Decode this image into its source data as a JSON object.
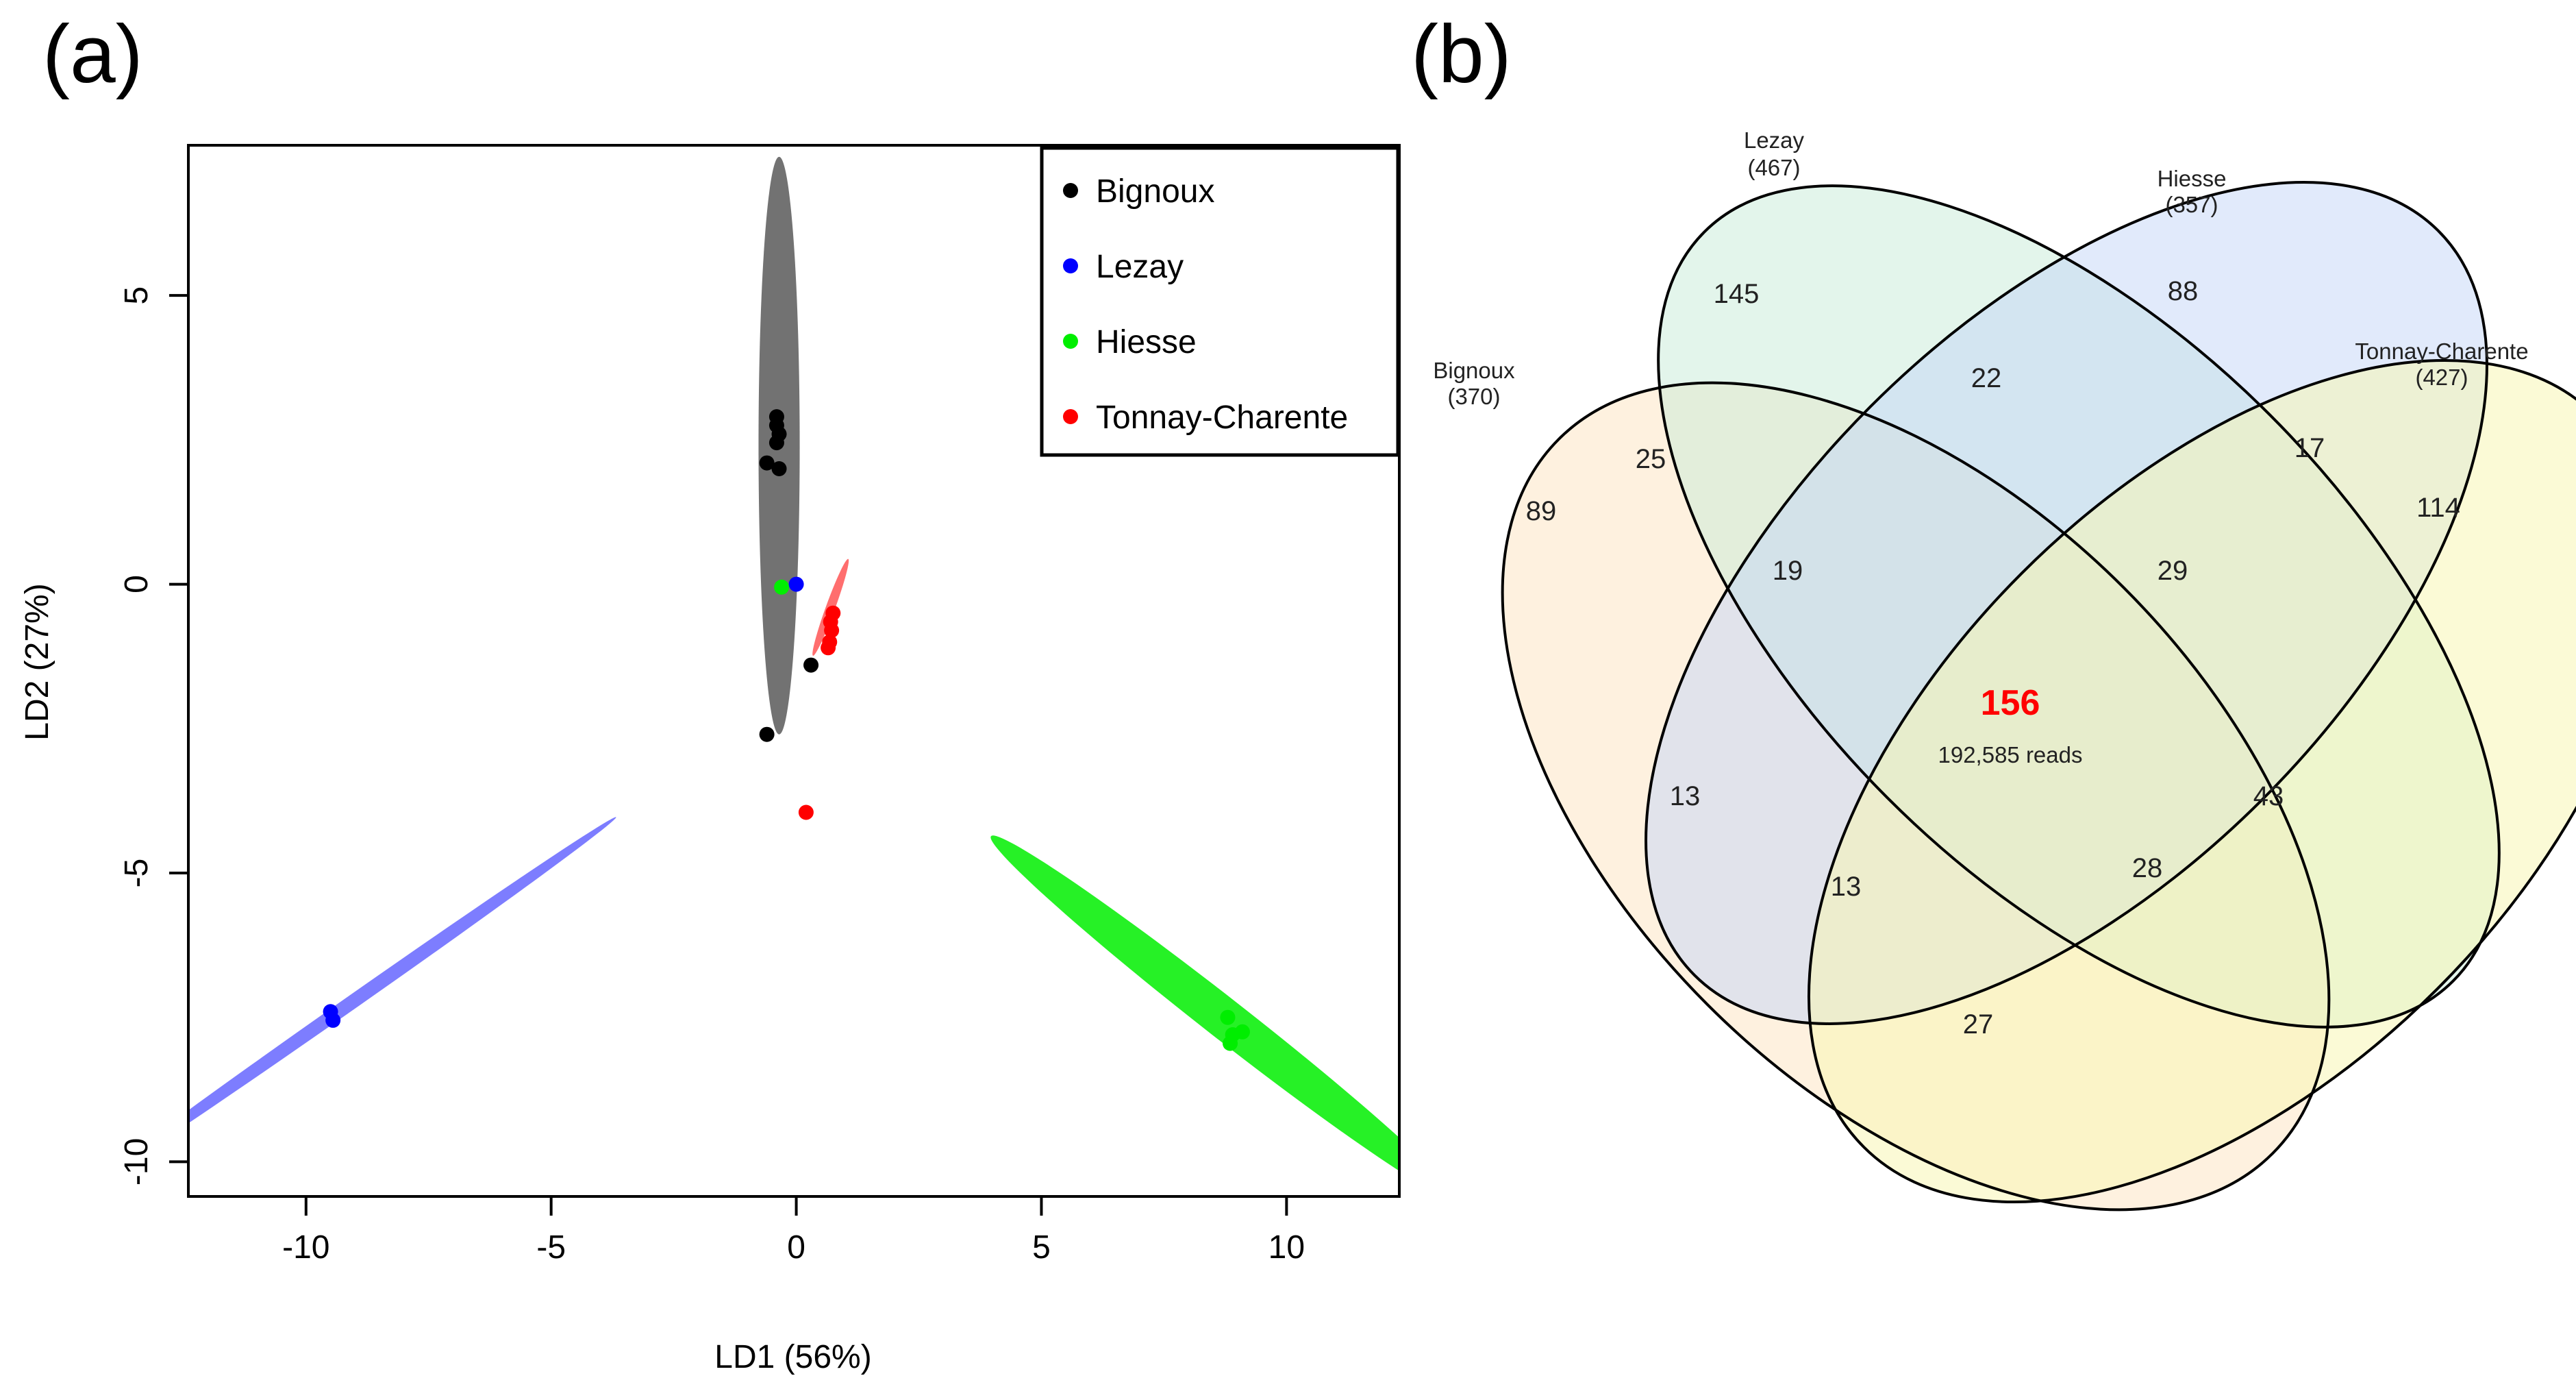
{
  "panels": {
    "a_label": "(a)",
    "b_label": "(b)"
  },
  "chart_data": [
    {
      "type": "scatter",
      "panel": "(a)",
      "xlabel": "LD1 (56%)",
      "ylabel": "LD2 (27%)",
      "xlim": [
        -12.4,
        12.3
      ],
      "ylim": [
        -10.6,
        7.6
      ],
      "xticks": [
        -10,
        -5,
        0,
        5,
        10
      ],
      "yticks": [
        -10,
        -5,
        0,
        5
      ],
      "legend_position": "top-right",
      "series": [
        {
          "name": "Bignoux",
          "color": "#000000",
          "ellipse": {
            "cx": -0.35,
            "cy": 2.4,
            "rx": 0.42,
            "ry": 5.0,
            "angle": 0,
            "fill": "#595959"
          },
          "points": [
            [
              -0.4,
              2.9
            ],
            [
              -0.4,
              2.75
            ],
            [
              -0.35,
              2.6
            ],
            [
              -0.4,
              2.45
            ],
            [
              -0.6,
              2.1
            ],
            [
              -0.35,
              2.0
            ],
            [
              0.3,
              -1.4
            ],
            [
              -0.6,
              -2.6
            ]
          ]
        },
        {
          "name": "Lezay",
          "color": "#0000ff",
          "ellipse": {
            "cx": -9.0,
            "cy": -7.2,
            "rx": 6.5,
            "ry": 0.12,
            "angle": 35,
            "fill": "#6666ff"
          },
          "points": [
            [
              -9.5,
              -7.4
            ],
            [
              -9.45,
              -7.55
            ],
            [
              0.0,
              0.0
            ]
          ]
        },
        {
          "name": "Hiesse",
          "color": "#00ee00",
          "ellipse": {
            "cx": 8.7,
            "cy": -7.5,
            "rx": 6.0,
            "ry": 0.35,
            "angle": -38,
            "fill": "#00ee00"
          },
          "points": [
            [
              8.8,
              -7.5
            ],
            [
              8.9,
              -7.8
            ],
            [
              9.1,
              -7.75
            ],
            [
              8.85,
              -7.95
            ],
            [
              -0.3,
              -0.05
            ]
          ]
        },
        {
          "name": "Tonnay-Charente",
          "color": "#ff0000",
          "ellipse": {
            "cx": 0.7,
            "cy": -0.4,
            "rx": 1.05,
            "ry": 0.08,
            "angle": 70,
            "fill": "#ff5555"
          },
          "points": [
            [
              0.75,
              -0.5
            ],
            [
              0.7,
              -0.65
            ],
            [
              0.72,
              -0.8
            ],
            [
              0.68,
              -1.0
            ],
            [
              0.65,
              -1.1
            ],
            [
              0.2,
              -3.95
            ]
          ]
        }
      ]
    },
    {
      "type": "venn",
      "panel": "(b)",
      "sets": [
        {
          "name": "Bignoux",
          "count": "(370)",
          "color": "#fde5c5"
        },
        {
          "name": "Lezay",
          "count": "(467)",
          "color": "#c8ecd8"
        },
        {
          "name": "Hiesse",
          "count": "(357)",
          "color": "#c4d6f8"
        },
        {
          "name": "Tonnay-Charente",
          "count": "(427)",
          "color": "#f8f5b5"
        }
      ],
      "regions": [
        {
          "sets": [
            "Lezay"
          ],
          "value": "145"
        },
        {
          "sets": [
            "Hiesse"
          ],
          "value": "88"
        },
        {
          "sets": [
            "Lezay",
            "Hiesse"
          ],
          "value": "22"
        },
        {
          "sets": [
            "Bignoux",
            "Lezay"
          ],
          "value": "25"
        },
        {
          "sets": [
            "Hiesse",
            "Tonnay-Charente"
          ],
          "value": "17"
        },
        {
          "sets": [
            "Bignoux"
          ],
          "value": "89"
        },
        {
          "sets": [
            "Tonnay-Charente"
          ],
          "value": "114"
        },
        {
          "sets": [
            "Bignoux",
            "Lezay",
            "Hiesse"
          ],
          "value": "19"
        },
        {
          "sets": [
            "Lezay",
            "Hiesse",
            "Tonnay-Charente"
          ],
          "value": "29"
        },
        {
          "sets": [
            "Bignoux",
            "Lezay",
            "Hiesse",
            "Tonnay-Charente"
          ],
          "value": "156",
          "note": "192,585 reads",
          "highlight_color": "#ff0000"
        },
        {
          "sets": [
            "Bignoux",
            "Hiesse"
          ],
          "value": "13"
        },
        {
          "sets": [
            "Lezay",
            "Tonnay-Charente"
          ],
          "value": "43"
        },
        {
          "sets": [
            "Bignoux",
            "Hiesse",
            "Tonnay-Charente"
          ],
          "value": "13"
        },
        {
          "sets": [
            "Bignoux",
            "Lezay",
            "Tonnay-Charente"
          ],
          "value": "28"
        },
        {
          "sets": [
            "Bignoux",
            "Tonnay-Charente"
          ],
          "value": "27"
        }
      ]
    }
  ]
}
